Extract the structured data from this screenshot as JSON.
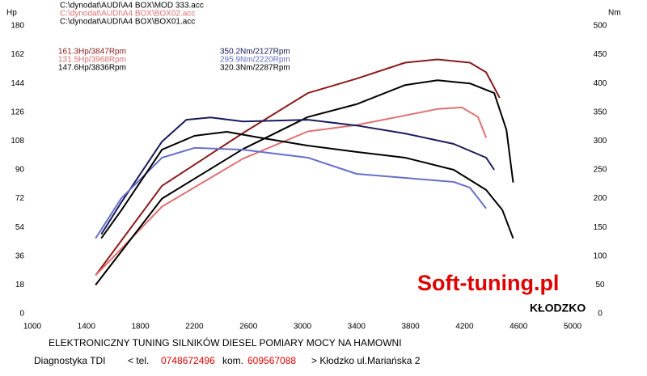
{
  "chart_data": {
    "type": "line",
    "files": [
      "C:\\dynodat\\AUDI\\A4 BOX\\MOD 333.acc",
      "C:\\dynodat\\AUDI\\A4 BOX\\BOX02.acc",
      "C:\\dynodat\\AUDI\\A4 BOX\\BOX01.acc"
    ],
    "ylabel": "Hp",
    "y2label": "Nm",
    "xlim": [
      1000,
      5000
    ],
    "xticks": [
      1000,
      1400,
      1800,
      2200,
      2600,
      3000,
      3400,
      3800,
      4200,
      4600,
      5000
    ],
    "ylim": [
      0,
      180
    ],
    "yticks": [
      0,
      18,
      36,
      54,
      72,
      90,
      108,
      126,
      144,
      162,
      180
    ],
    "y2lim": [
      0,
      500
    ],
    "y2ticks": [
      0,
      50,
      100,
      150,
      200,
      250,
      300,
      350,
      400,
      450,
      500
    ],
    "series": [
      {
        "name": "161.3Hp/3847Rpm",
        "color": "#8b1a1a",
        "axis": "y",
        "x": [
          1468,
          1960,
          2560,
          3040,
          3400,
          3760,
          4000,
          4240,
          4360,
          4460
        ],
        "values": [
          24,
          80,
          113,
          138,
          147,
          157,
          159,
          157,
          151,
          135
        ]
      },
      {
        "name": "131.5Hp/3968Rpm",
        "color": "#e07070",
        "axis": "y",
        "x": [
          1468,
          1960,
          2560,
          3040,
          3400,
          3760,
          4000,
          4180,
          4300,
          4360
        ],
        "values": [
          24,
          67,
          97,
          114,
          118,
          124,
          128,
          129,
          123,
          110
        ]
      },
      {
        "name": "147.6Hp/3836Rpm",
        "color": "#000000",
        "axis": "y",
        "x": [
          1468,
          1960,
          2560,
          3040,
          3400,
          3760,
          4000,
          4240,
          4420,
          4510,
          4560
        ],
        "values": [
          18,
          72,
          103,
          123,
          131,
          143,
          146,
          144,
          138,
          115,
          82
        ]
      },
      {
        "name": "350.2Nm/2127Rpm",
        "color": "#1a1a5a",
        "axis": "y2",
        "x": [
          1510,
          1660,
          1960,
          2140,
          2320,
          2560,
          3040,
          3400,
          3760,
          4120,
          4360,
          4420
        ],
        "values": [
          138,
          194,
          299,
          337,
          341,
          334,
          337,
          327,
          313,
          295,
          271,
          250
        ]
      },
      {
        "name": "295.9Nm/2220Rpm",
        "color": "#6670c8",
        "axis": "y2",
        "x": [
          1468,
          1660,
          1960,
          2200,
          2560,
          3040,
          3400,
          3760,
          4120,
          4240,
          4360
        ],
        "values": [
          131,
          201,
          271,
          288,
          285,
          271,
          243,
          236,
          229,
          219,
          183
        ]
      },
      {
        "name": "320.3Nm/2287Rpm",
        "color": "#000000",
        "axis": "y2",
        "x": [
          1510,
          1660,
          1960,
          2200,
          2440,
          2680,
          3040,
          3400,
          3760,
          4120,
          4360,
          4480,
          4560
        ],
        "values": [
          131,
          180,
          285,
          309,
          316,
          306,
          292,
          281,
          271,
          250,
          215,
          180,
          131
        ]
      }
    ]
  },
  "brand": {
    "name": "Soft-tuning.pl",
    "city": "KŁODZKO"
  },
  "footer": {
    "line1": "ELEKTRONICZNY TUNING SILNIKÓW DIESEL  POMIARY MOCY NA HAMOWNI",
    "label": "Diagnostyka TDI",
    "tel_prefix": "< tel.",
    "tel": "0748672496",
    "kom_prefix": "kom.",
    "kom": "609567088",
    "address": "> Kłodzko ul.Mariańska 2"
  }
}
